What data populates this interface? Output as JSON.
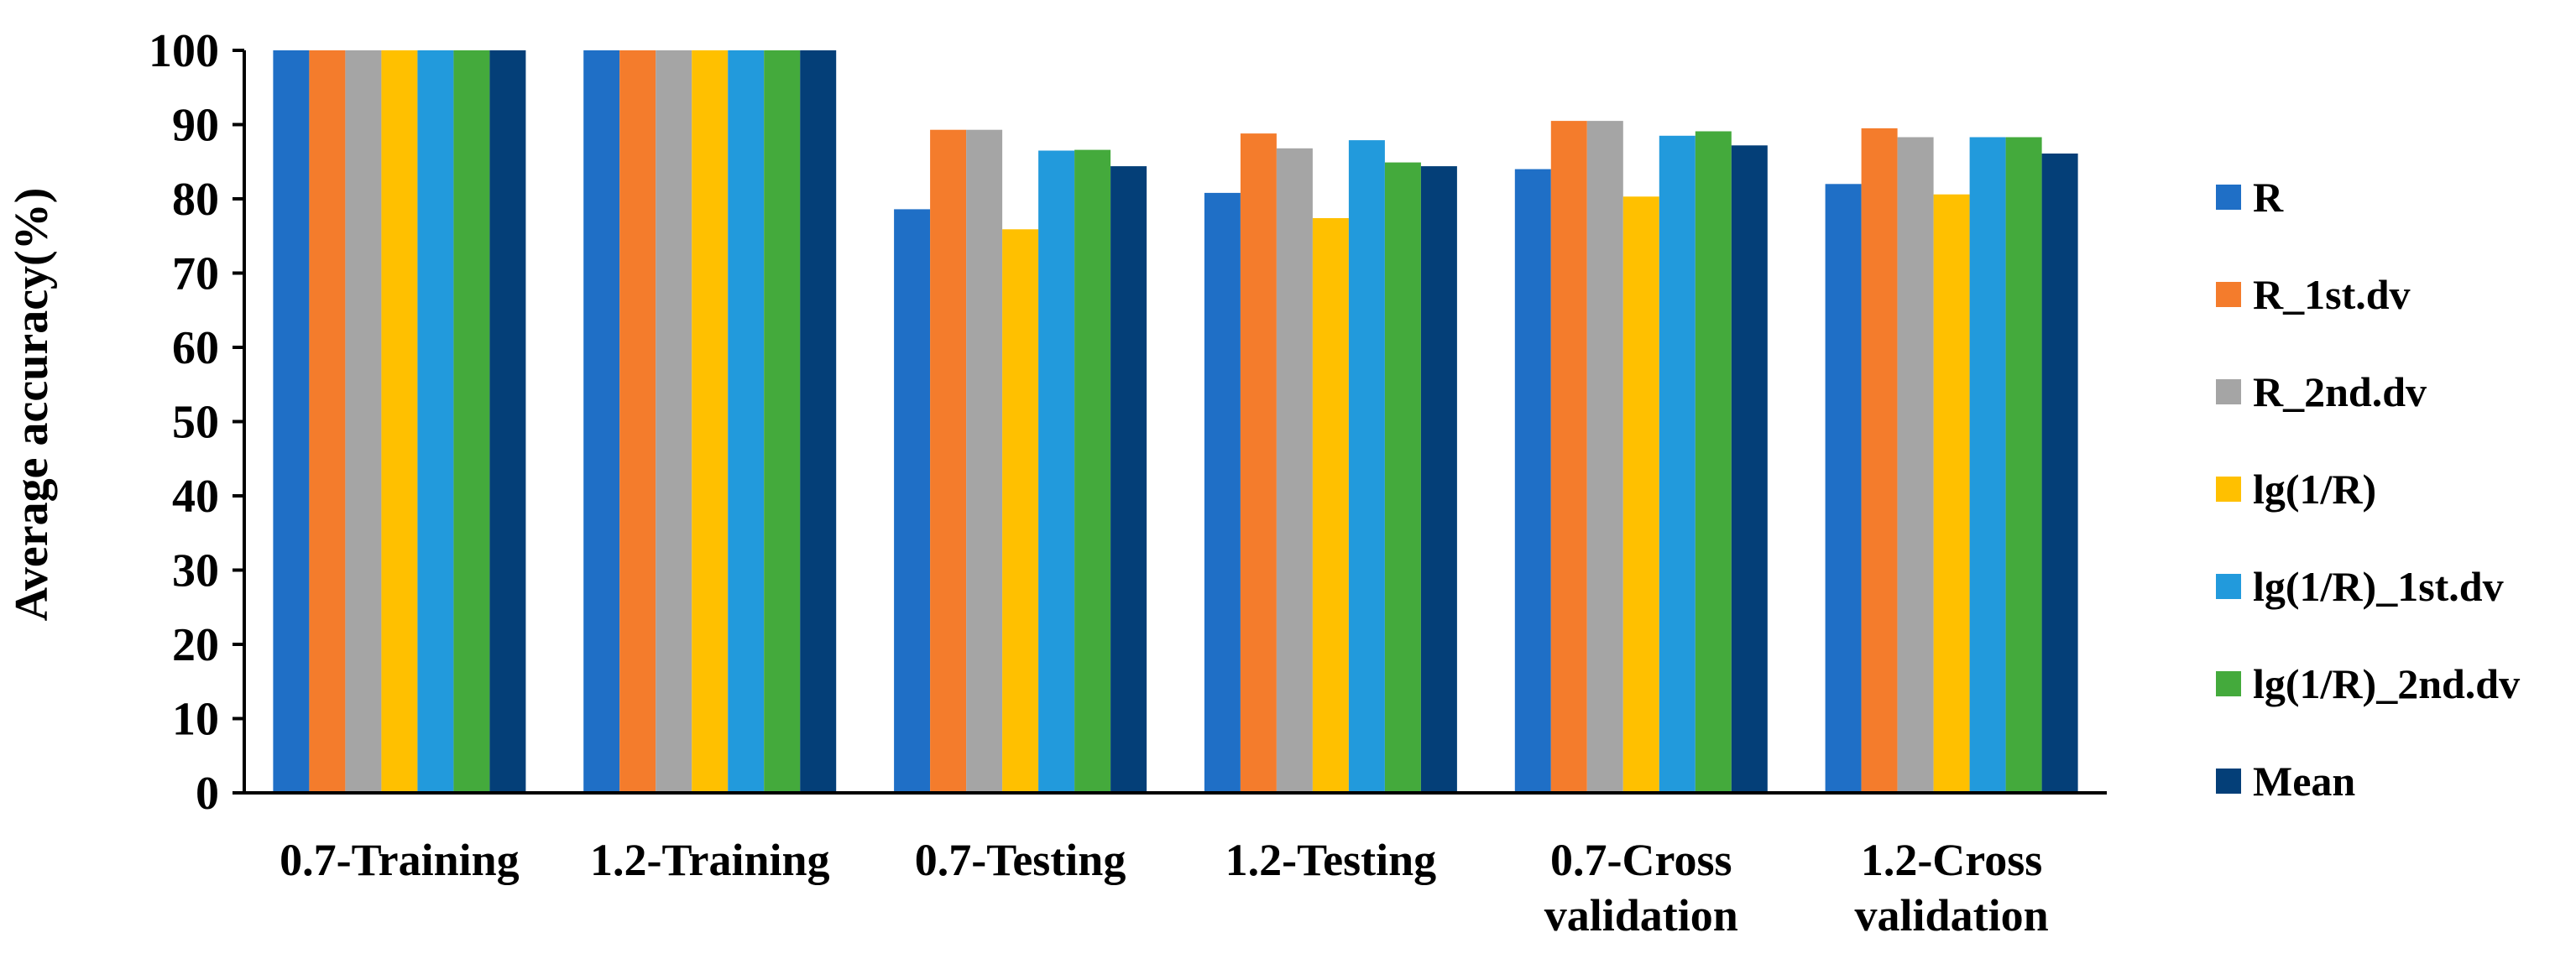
{
  "chart_data": {
    "type": "bar",
    "title": "",
    "xlabel": "",
    "ylabel": "Average accuracy(%)",
    "ylim": [
      0,
      100
    ],
    "yticks": [
      0,
      10,
      20,
      30,
      40,
      50,
      60,
      70,
      80,
      90,
      100
    ],
    "grid": false,
    "legend_position": "right",
    "categories": [
      [
        "0.7-Training"
      ],
      [
        "1.2-Training"
      ],
      [
        "0.7-Testing"
      ],
      [
        "1.2-Testing"
      ],
      [
        "0.7-Cross",
        "validation"
      ],
      [
        "1.2-Cross",
        "validation"
      ]
    ],
    "series": [
      {
        "name": "R",
        "color": "#1F6FC6",
        "values": [
          100,
          100,
          78.6,
          80.8,
          84.0,
          82.0
        ]
      },
      {
        "name": "R_1st.dv",
        "color": "#F47C2C",
        "values": [
          100,
          100,
          89.3,
          88.8,
          90.5,
          89.5
        ]
      },
      {
        "name": "R_2nd.dv",
        "color": "#A5A5A5",
        "values": [
          100,
          100,
          89.3,
          86.8,
          90.5,
          88.3
        ]
      },
      {
        "name": "lg(1/R)",
        "color": "#FFC000",
        "values": [
          100,
          100,
          75.9,
          77.4,
          80.3,
          80.6
        ]
      },
      {
        "name": "lg(1/R)_1st.dv",
        "color": "#229ADC",
        "values": [
          100,
          100,
          86.5,
          87.9,
          88.5,
          88.3
        ]
      },
      {
        "name": "lg(1/R)_2nd.dv",
        "color": "#44AA3C",
        "values": [
          100,
          100,
          86.6,
          84.9,
          89.1,
          88.3
        ]
      },
      {
        "name": "Mean",
        "color": "#043F78",
        "values": [
          100,
          100,
          84.4,
          84.4,
          87.2,
          86.1
        ]
      }
    ]
  }
}
